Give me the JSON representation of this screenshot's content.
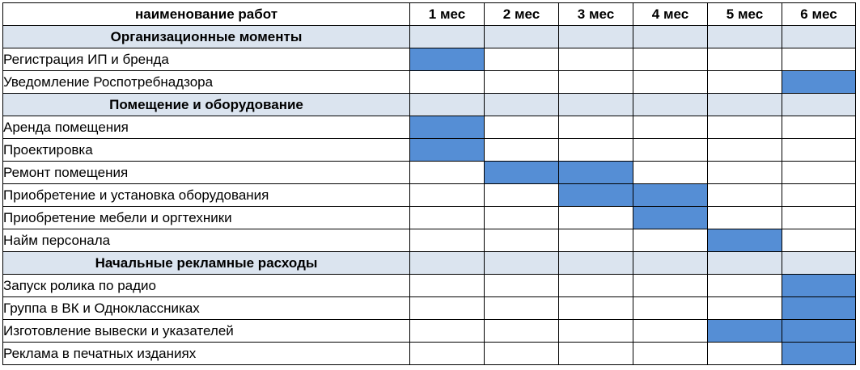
{
  "header": {
    "task_column": "наименование работ",
    "months": [
      "1 мес",
      "2 мес",
      "3 мес",
      "4 мес",
      "5 мес",
      "6 мес"
    ]
  },
  "colors": {
    "bar": "#558ed5",
    "section_fill": "#dbe4ef",
    "header_text": "#1f3f75"
  },
  "sections": [
    {
      "title": "Организационные моменты",
      "tasks": [
        {
          "name": "Регистрация ИП и бренда",
          "months": [
            1
          ]
        },
        {
          "name": "Уведомление Роспотребнадзора",
          "months": [
            6
          ]
        }
      ]
    },
    {
      "title": "Помещение и оборудование",
      "tasks": [
        {
          "name": "Аренда помещения",
          "months": [
            1
          ]
        },
        {
          "name": "Проектировка",
          "months": [
            1
          ]
        },
        {
          "name": "Ремонт помещения",
          "months": [
            2,
            3
          ]
        },
        {
          "name": "Приобретение и установка оборудования",
          "months": [
            3,
            4
          ]
        },
        {
          "name": "Приобретение мебели и оргтехники",
          "months": [
            4
          ]
        },
        {
          "name": "Найм персонала",
          "months": [
            5
          ]
        }
      ]
    },
    {
      "title": "Начальные рекламные расходы",
      "tasks": [
        {
          "name": "Запуск ролика по радио",
          "months": [
            6
          ]
        },
        {
          "name": "Группа в ВК и Одноклассниках",
          "months": [
            6
          ]
        },
        {
          "name": "Изготовление вывески и указателей",
          "months": [
            5,
            6
          ]
        },
        {
          "name": "Реклама в печатных изданиях",
          "months": [
            6
          ]
        }
      ]
    }
  ]
}
